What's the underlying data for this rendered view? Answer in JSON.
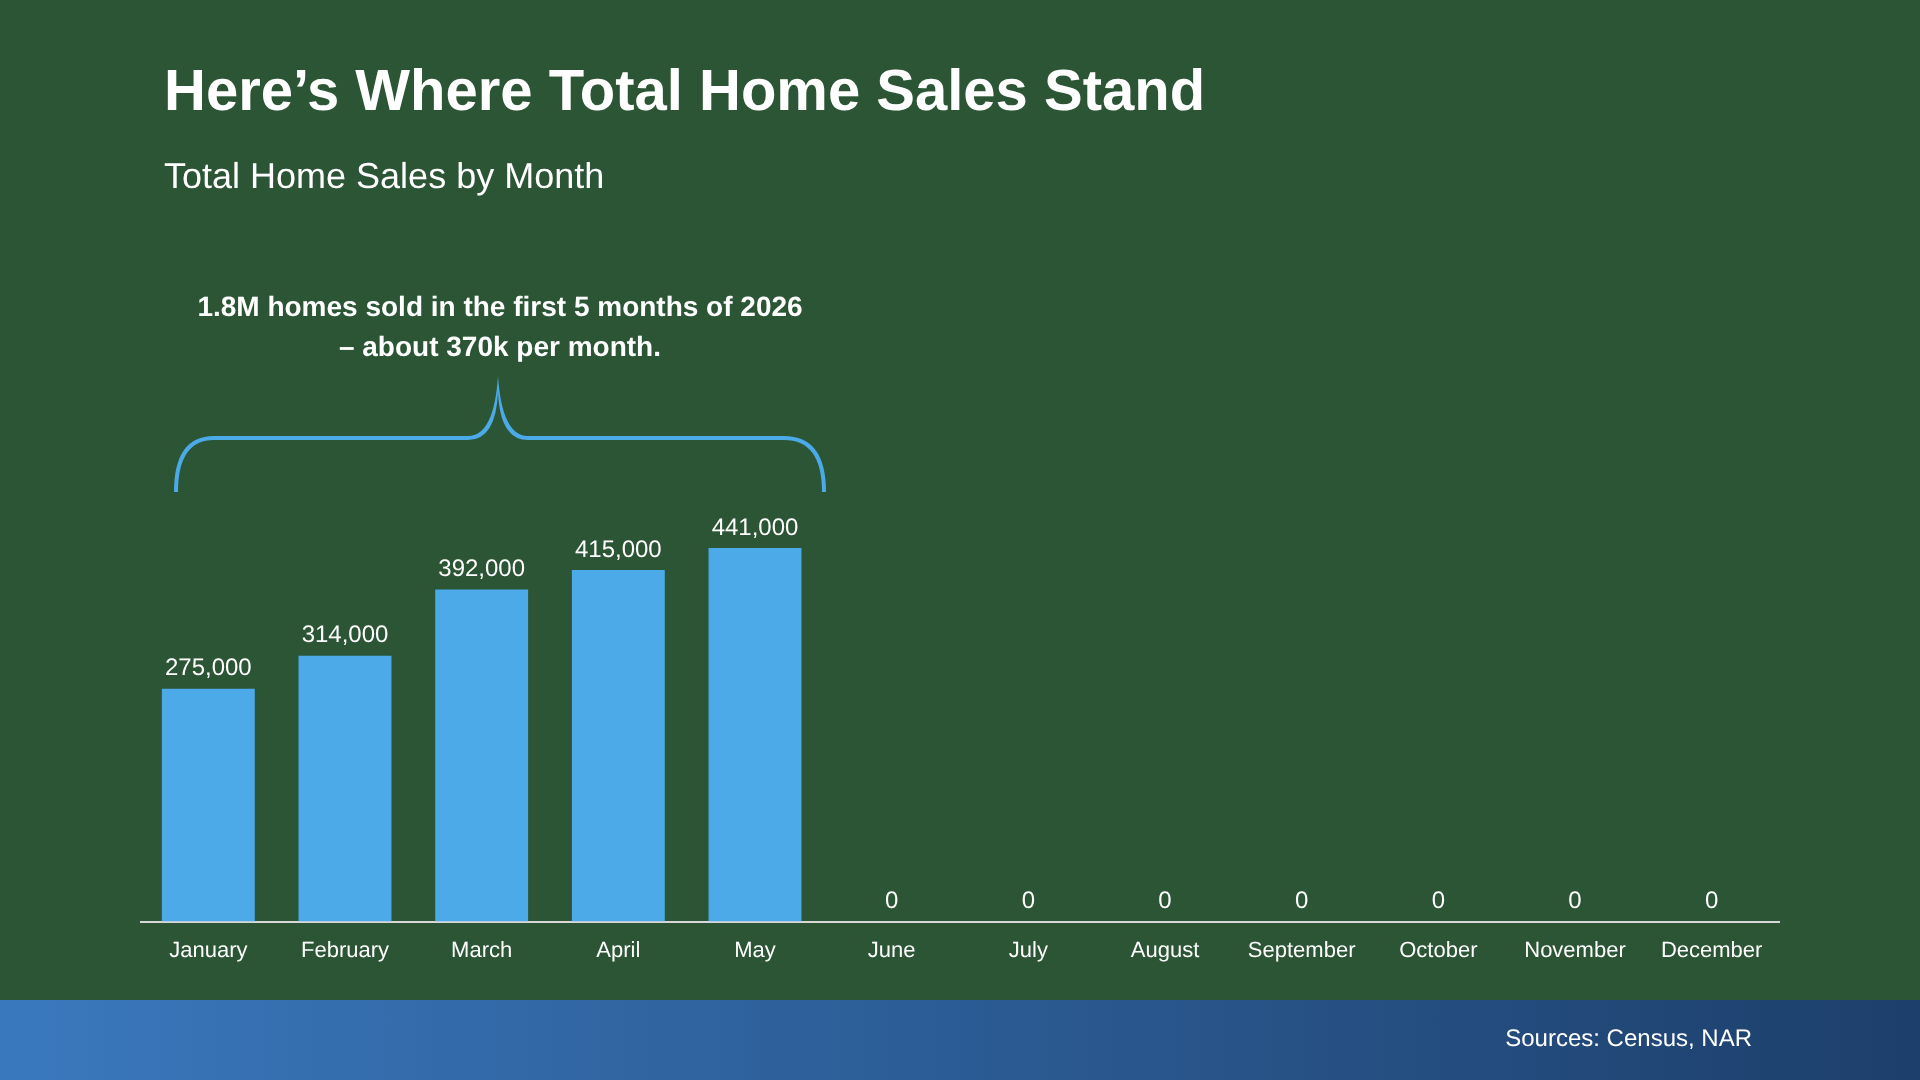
{
  "chart_data": {
    "type": "bar",
    "title": "Here’s Where Total Home Sales Stand",
    "subtitle": "Total Home Sales by Month",
    "categories": [
      "January",
      "February",
      "March",
      "April",
      "May",
      "June",
      "July",
      "August",
      "September",
      "October",
      "November",
      "December"
    ],
    "values": [
      275000,
      314000,
      392000,
      415000,
      441000,
      0,
      0,
      0,
      0,
      0,
      0,
      0
    ],
    "value_labels": [
      "275,000",
      "314,000",
      "392,000",
      "415,000",
      "441,000",
      "0",
      "0",
      "0",
      "0",
      "0",
      "0",
      "0"
    ],
    "color": "#4daae9",
    "data_labels": true,
    "grid": false,
    "legend": false,
    "annotations": [
      "1.8M homes sold in the first 5 months of 2026 – about 370k per month.",
      "Sources: Census, NAR"
    ]
  }
}
